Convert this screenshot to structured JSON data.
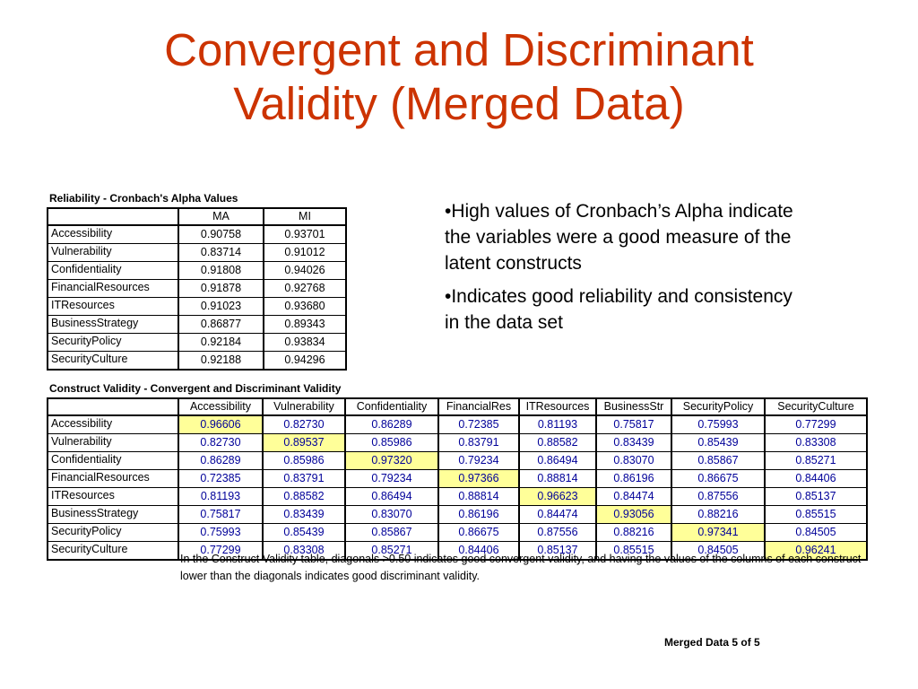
{
  "slide": {
    "title_line1": "Convergent and Discriminant",
    "title_line2": "Validity (Merged Data)",
    "footer": "Merged Data 5 of 5"
  },
  "reliability": {
    "caption": "Reliability - Cronbach's Alpha Values",
    "columns": [
      "MA",
      "MI"
    ],
    "rows": [
      {
        "label": "Accessibility",
        "values": [
          "0.90758",
          "0.93701"
        ]
      },
      {
        "label": "Vulnerability",
        "values": [
          "0.83714",
          "0.91012"
        ]
      },
      {
        "label": "Confidentiality",
        "values": [
          "0.91808",
          "0.94026"
        ]
      },
      {
        "label": "FinancialResources",
        "values": [
          "0.91878",
          "0.92768"
        ]
      },
      {
        "label": "ITResources",
        "values": [
          "0.91023",
          "0.93680"
        ]
      },
      {
        "label": "BusinessStrategy",
        "values": [
          "0.86877",
          "0.89343"
        ]
      },
      {
        "label": "SecurityPolicy",
        "values": [
          "0.92184",
          "0.93834"
        ]
      },
      {
        "label": "SecurityCulture",
        "values": [
          "0.92188",
          "0.94296"
        ]
      }
    ]
  },
  "construct_validity": {
    "caption": "Construct Validity - Convergent and Discriminant Validity",
    "columns": [
      "Accessibility",
      "Vulnerability",
      "Confidentiality",
      "FinancialRes",
      "ITResources",
      "BusinessStr",
      "SecurityPolicy",
      "SecurityCulture"
    ],
    "rows": [
      {
        "label": "Accessibility",
        "values": [
          "0.96606",
          "0.82730",
          "0.86289",
          "0.72385",
          "0.81193",
          "0.75817",
          "0.75993",
          "0.77299"
        ]
      },
      {
        "label": "Vulnerability",
        "values": [
          "0.82730",
          "0.89537",
          "0.85986",
          "0.83791",
          "0.88582",
          "0.83439",
          "0.85439",
          "0.83308"
        ]
      },
      {
        "label": "Confidentiality",
        "values": [
          "0.86289",
          "0.85986",
          "0.97320",
          "0.79234",
          "0.86494",
          "0.83070",
          "0.85867",
          "0.85271"
        ]
      },
      {
        "label": "FinancialResources",
        "values": [
          "0.72385",
          "0.83791",
          "0.79234",
          "0.97366",
          "0.88814",
          "0.86196",
          "0.86675",
          "0.84406"
        ]
      },
      {
        "label": "ITResources",
        "values": [
          "0.81193",
          "0.88582",
          "0.86494",
          "0.88814",
          "0.96623",
          "0.84474",
          "0.87556",
          "0.85137"
        ]
      },
      {
        "label": "BusinessStrategy",
        "values": [
          "0.75817",
          "0.83439",
          "0.83070",
          "0.86196",
          "0.84474",
          "0.93056",
          "0.88216",
          "0.85515"
        ]
      },
      {
        "label": "SecurityPolicy",
        "values": [
          "0.75993",
          "0.85439",
          "0.85867",
          "0.86675",
          "0.87556",
          "0.88216",
          "0.97341",
          "0.84505"
        ]
      },
      {
        "label": "SecurityCulture",
        "values": [
          "0.77299",
          "0.83308",
          "0.85271",
          "0.84406",
          "0.85137",
          "0.85515",
          "0.84505",
          "0.96241"
        ]
      }
    ],
    "note": "In the Construct Validity table, diagonals >0.50 indicates good convergent validity, and having the values of the columns of each construct lower than the diagonals indicates good discriminant validity."
  },
  "bullets": [
    "•High values of Cronbach’s Alpha indicate the variables were a good measure of the latent constructs",
    "•Indicates good reliability and consistency in the data set"
  ],
  "colors": {
    "title": "#cc3300",
    "value_text": "#000099",
    "diagonal_highlight": "#ffff99"
  }
}
